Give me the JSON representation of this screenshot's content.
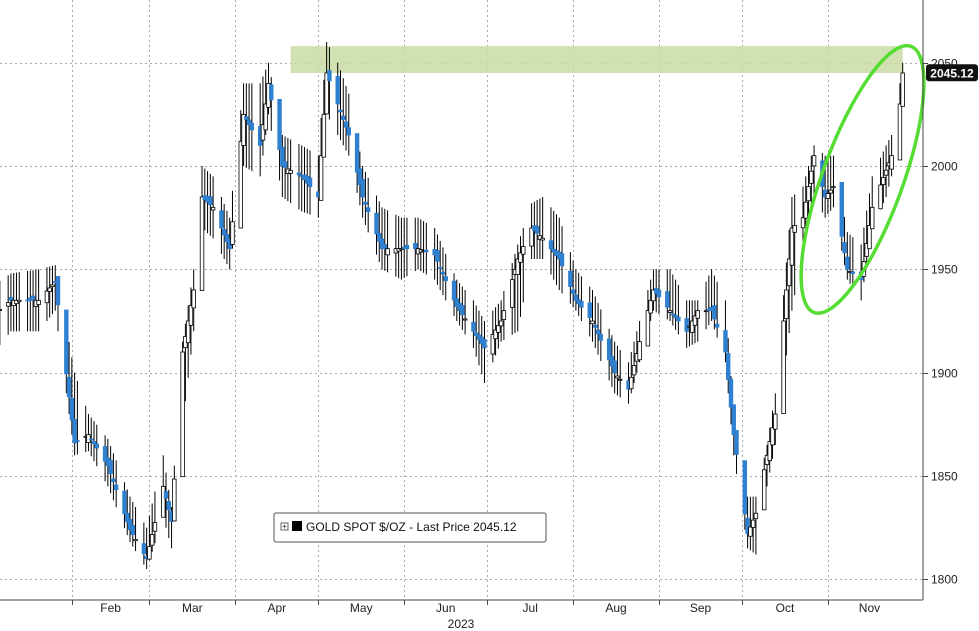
{
  "chart_data": {
    "type": "candlestick",
    "title": "",
    "xlabel": "2023",
    "ylabel": "",
    "ylim": [
      1790,
      2075
    ],
    "y_ticks": [
      1800,
      1850,
      1900,
      1950,
      2000,
      2050
    ],
    "x_tick_labels": [
      "Feb",
      "Mar",
      "Apr",
      "May",
      "Jun",
      "Jul",
      "Aug",
      "Sep",
      "Oct",
      "Nov"
    ],
    "x_tick_dates": [
      "2023-02-01",
      "2023-03-01",
      "2023-04-01",
      "2023-05-01",
      "2023-06-01",
      "2023-07-01",
      "2023-08-01",
      "2023-09-01",
      "2023-10-01",
      "2023-11-01"
    ],
    "x_range": [
      "2023-01-01",
      "2023-12-01"
    ],
    "grid": true,
    "legend": {
      "position": "bottom-center",
      "label": "GOLD SPOT $/OZ - Last Price 2045.12",
      "color": "#000000"
    },
    "last_price": {
      "label": "2045.12",
      "value": 2045.12
    },
    "highlight_band": {
      "y_from": 2045,
      "y_to": 2058,
      "x_from": "2023-04-21",
      "x_to": "2023-11-28",
      "color": "#c9dca5"
    },
    "highlight_ellipse": {
      "x_from": "2023-10-30",
      "x_to": "2023-11-28",
      "y_from": 1925,
      "y_to": 2062,
      "color": "#55dd33"
    },
    "colors": {
      "up": "#ffffff",
      "down": "#2f80d0",
      "wick": "#000000",
      "grid": "#aaaaaa"
    },
    "ohlc_anchors": {
      "fields": [
        "date",
        "close",
        "high",
        "low"
      ],
      "values": [
        [
          "2023-01-01",
          1925,
          1940,
          1905
        ],
        [
          "2023-01-10",
          1935,
          1948,
          1920
        ],
        [
          "2023-01-20",
          1935,
          1950,
          1920
        ],
        [
          "2023-01-26",
          1944,
          1952,
          1930
        ],
        [
          "2023-02-02",
          1866,
          1900,
          1860
        ],
        [
          "2023-02-07",
          1870,
          1880,
          1862
        ],
        [
          "2023-02-14",
          1855,
          1868,
          1845
        ],
        [
          "2023-02-22",
          1824,
          1840,
          1818
        ],
        [
          "2023-02-28",
          1810,
          1825,
          1805
        ],
        [
          "2023-03-06",
          1845,
          1860,
          1830
        ],
        [
          "2023-03-09",
          1828,
          1835,
          1815
        ],
        [
          "2023-03-13",
          1910,
          1915,
          1875
        ],
        [
          "2023-03-17",
          1940,
          1950,
          1920
        ],
        [
          "2023-03-20",
          1985,
          2000,
          1970
        ],
        [
          "2023-03-24",
          1980,
          1995,
          1965
        ],
        [
          "2023-03-30",
          1960,
          1975,
          1950
        ],
        [
          "2023-04-04",
          2025,
          2040,
          2000
        ],
        [
          "2023-04-10",
          2010,
          2040,
          1995
        ],
        [
          "2023-04-13",
          2040,
          2050,
          2025
        ],
        [
          "2023-04-18",
          2000,
          2015,
          1985
        ],
        [
          "2023-04-25",
          1995,
          2010,
          1978
        ],
        [
          "2023-05-01",
          1985,
          2005,
          1975
        ],
        [
          "2023-05-04",
          2045,
          2060,
          2025
        ],
        [
          "2023-05-08",
          2030,
          2050,
          2015
        ],
        [
          "2023-05-12",
          2015,
          2035,
          2005
        ],
        [
          "2023-05-17",
          1985,
          2000,
          1975
        ],
        [
          "2023-05-24",
          1960,
          1980,
          1950
        ],
        [
          "2023-05-31",
          1960,
          1975,
          1945
        ],
        [
          "2023-06-06",
          1960,
          1975,
          1950
        ],
        [
          "2023-06-12",
          1957,
          1970,
          1945
        ],
        [
          "2023-06-20",
          1932,
          1945,
          1925
        ],
        [
          "2023-06-26",
          1920,
          1935,
          1912
        ],
        [
          "2023-06-30",
          1912,
          1925,
          1895
        ],
        [
          "2023-07-06",
          1925,
          1935,
          1915
        ],
        [
          "2023-07-12",
          1955,
          1962,
          1920
        ],
        [
          "2023-07-17",
          1970,
          1982,
          1955
        ],
        [
          "2023-07-21",
          1965,
          1985,
          1955
        ],
        [
          "2023-07-27",
          1955,
          1975,
          1940
        ],
        [
          "2023-08-02",
          1935,
          1950,
          1930
        ],
        [
          "2023-08-08",
          1925,
          1940,
          1915
        ],
        [
          "2023-08-16",
          1900,
          1915,
          1890
        ],
        [
          "2023-08-21",
          1892,
          1905,
          1885
        ],
        [
          "2023-08-25",
          1915,
          1925,
          1905
        ],
        [
          "2023-08-30",
          1940,
          1950,
          1930
        ],
        [
          "2023-09-05",
          1930,
          1950,
          1925
        ],
        [
          "2023-09-11",
          1920,
          1935,
          1912
        ],
        [
          "2023-09-15",
          1930,
          1935,
          1915
        ],
        [
          "2023-09-20",
          1930,
          1950,
          1925
        ],
        [
          "2023-09-25",
          1910,
          1935,
          1905
        ],
        [
          "2023-09-28",
          1870,
          1880,
          1860
        ],
        [
          "2023-10-03",
          1822,
          1840,
          1815
        ],
        [
          "2023-10-06",
          1832,
          1840,
          1812
        ],
        [
          "2023-10-10",
          1860,
          1865,
          1845
        ],
        [
          "2023-10-13",
          1880,
          1890,
          1865
        ],
        [
          "2023-10-19",
          1970,
          1985,
          1930
        ],
        [
          "2023-10-23",
          1975,
          1990,
          1960
        ],
        [
          "2023-10-27",
          2005,
          2010,
          1985
        ],
        [
          "2023-10-31",
          1985,
          2005,
          1975
        ],
        [
          "2023-11-03",
          1990,
          2005,
          1980
        ],
        [
          "2023-11-08",
          1950,
          1968,
          1945
        ],
        [
          "2023-11-13",
          1945,
          1962,
          1935
        ],
        [
          "2023-11-17",
          1980,
          1995,
          1970
        ],
        [
          "2023-11-22",
          1998,
          2010,
          1985
        ],
        [
          "2023-11-24",
          2005,
          2015,
          1995
        ],
        [
          "2023-11-27",
          2030,
          2040,
          2015
        ],
        [
          "2023-11-28",
          2045,
          2050,
          2035
        ]
      ]
    }
  }
}
